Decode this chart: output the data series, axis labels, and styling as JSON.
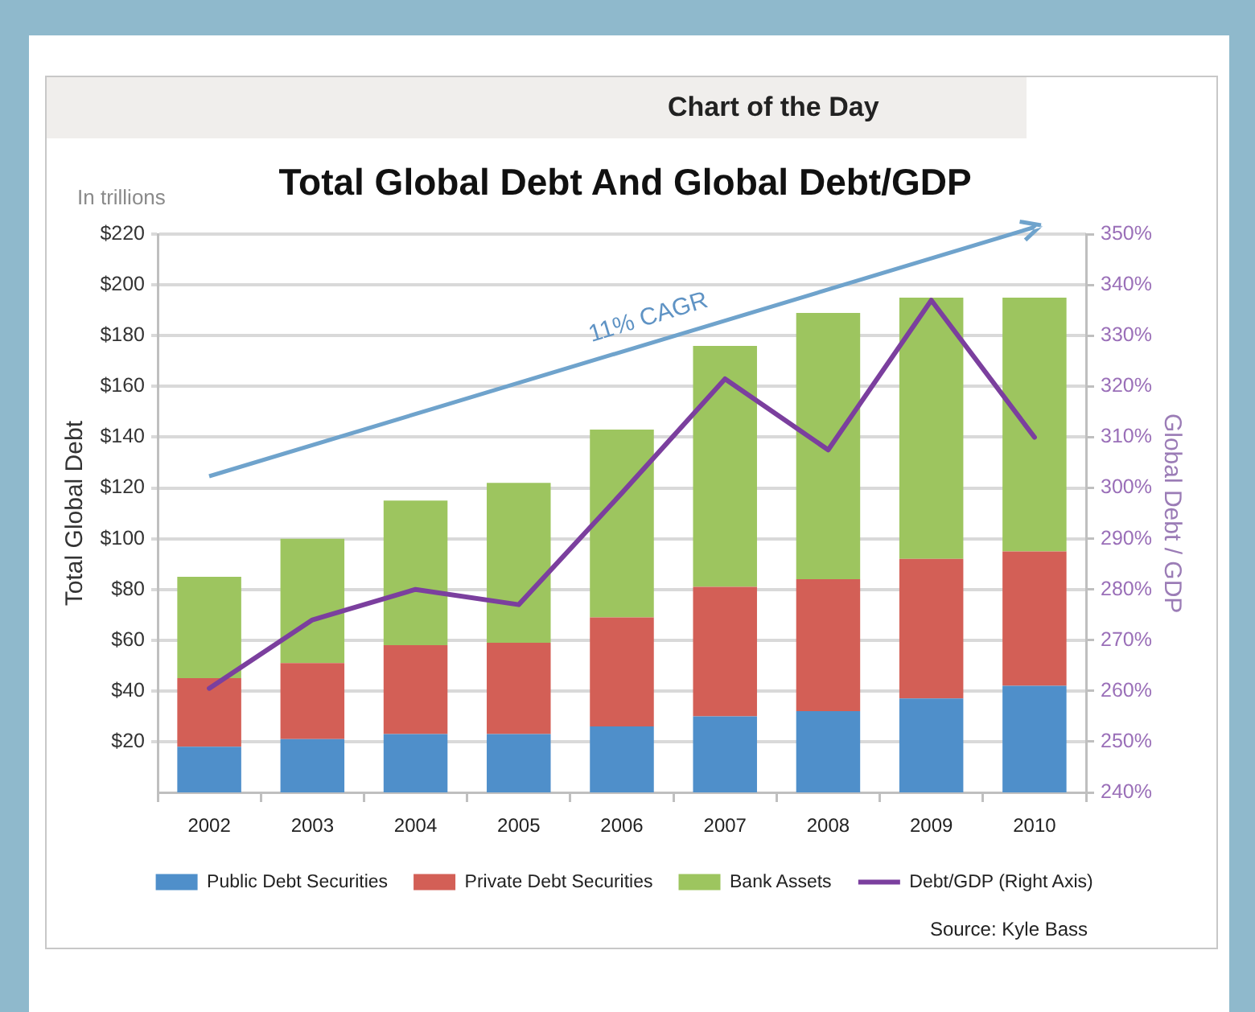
{
  "chart_data": {
    "type": "bar",
    "title": "Total Global Debt And Global Debt/GDP",
    "subtitle": "Chart of the Day",
    "ylabel": "Total Global Debt",
    "y2label": "Global Debt / GDP",
    "annotations": [
      "In trillions",
      "11% CAGR",
      "Source: Kyle Bass"
    ],
    "categories": [
      "2002",
      "2003",
      "2004",
      "2005",
      "2006",
      "2007",
      "2008",
      "2009",
      "2010"
    ],
    "stacked": true,
    "series": [
      {
        "name": "Public Debt Securities",
        "color": "#4f8fca",
        "values": [
          18,
          21,
          23,
          23,
          26,
          30,
          32,
          37,
          42
        ]
      },
      {
        "name": "Private Debt Securities",
        "color": "#d35f56",
        "values": [
          27,
          30,
          35,
          36,
          43,
          51,
          52,
          55,
          53
        ]
      },
      {
        "name": "Bank Assets",
        "color": "#9dc55f",
        "values": [
          40,
          49,
          57,
          63,
          74,
          95,
          105,
          103,
          100
        ]
      },
      {
        "name": "Debt/GDP (Right Axis)",
        "type": "line",
        "axis": "y2",
        "color": "#7b3f9e",
        "values": [
          260.5,
          274,
          280,
          277,
          299,
          321.5,
          307.5,
          337,
          310
        ]
      }
    ],
    "ylim": [
      0,
      220
    ],
    "yticks": [
      {
        "value": 20,
        "label": "$20"
      },
      {
        "value": 40,
        "label": "$40"
      },
      {
        "value": 60,
        "label": "$60"
      },
      {
        "value": 80,
        "label": "$80"
      },
      {
        "value": 100,
        "label": "$100"
      },
      {
        "value": 120,
        "label": "$120"
      },
      {
        "value": 140,
        "label": "$140"
      },
      {
        "value": 160,
        "label": "$160"
      },
      {
        "value": 180,
        "label": "$180"
      },
      {
        "value": 200,
        "label": "$200"
      },
      {
        "value": 220,
        "label": "$220"
      }
    ],
    "y2lim": [
      240,
      350
    ],
    "y2ticks": [
      {
        "value": 240,
        "label": "240%"
      },
      {
        "value": 250,
        "label": "250%"
      },
      {
        "value": 260,
        "label": "260%"
      },
      {
        "value": 270,
        "label": "270%"
      },
      {
        "value": 280,
        "label": "280%"
      },
      {
        "value": 290,
        "label": "290%"
      },
      {
        "value": 300,
        "label": "300%"
      },
      {
        "value": 310,
        "label": "310%"
      },
      {
        "value": 320,
        "label": "320%"
      },
      {
        "value": 330,
        "label": "330%"
      },
      {
        "value": 340,
        "label": "340%"
      },
      {
        "value": 350,
        "label": "350%"
      }
    ],
    "grid": "y",
    "legend": "bottom",
    "marker": "none"
  }
}
